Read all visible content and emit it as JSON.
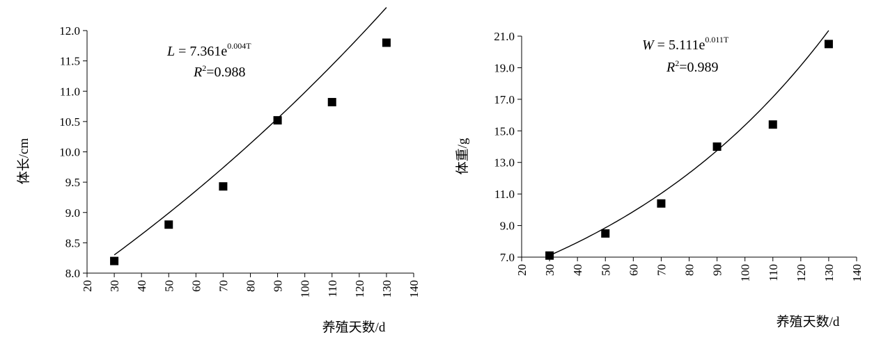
{
  "chart_data": [
    {
      "type": "scatter",
      "title": "",
      "xlabel": "养殖天数/d",
      "ylabel": "体长/cm",
      "xlim": [
        20,
        140
      ],
      "ylim": [
        8.0,
        12.0
      ],
      "x_ticks": [
        20,
        30,
        40,
        50,
        60,
        70,
        80,
        90,
        100,
        110,
        120,
        130,
        140
      ],
      "y_ticks": [
        8.0,
        8.5,
        9.0,
        9.5,
        10.0,
        10.5,
        11.0,
        11.5,
        12.0
      ],
      "x_tick_labels": [
        "20",
        "30",
        "40",
        "50",
        "60",
        "70",
        "80",
        "90",
        "100",
        "110",
        "120",
        "130",
        "140"
      ],
      "y_tick_labels": [
        "8.0",
        "8.5",
        "9.0",
        "9.5",
        "10.0",
        "10.5",
        "11.0",
        "11.5",
        "12.0"
      ],
      "grid": false,
      "legend": "none",
      "series": [
        {
          "x": [
            30,
            50,
            70,
            90,
            110,
            130
          ],
          "y": [
            8.2,
            8.8,
            9.43,
            10.52,
            10.82,
            11.8
          ]
        }
      ],
      "trendline": {
        "model": "exponential",
        "a": 7.361,
        "b": 0.004,
        "x_range": [
          30,
          130
        ]
      },
      "equation": {
        "lhs": "L",
        "eq_mid": " = 7.361e",
        "exponent": "0.004T",
        "r2_label": "R",
        "r2_sup": "2",
        "r2_value": "=0.988"
      }
    },
    {
      "type": "scatter",
      "title": "",
      "xlabel": "养殖天数/d",
      "ylabel": "体重/g",
      "xlim": [
        20,
        140
      ],
      "ylim": [
        7.0,
        21.0
      ],
      "x_ticks": [
        20,
        30,
        40,
        50,
        60,
        70,
        80,
        90,
        100,
        110,
        120,
        130,
        140
      ],
      "y_ticks": [
        7.0,
        9.0,
        11.0,
        13.0,
        15.0,
        17.0,
        19.0,
        21.0
      ],
      "x_tick_labels": [
        "20",
        "30",
        "40",
        "50",
        "60",
        "70",
        "80",
        "90",
        "100",
        "110",
        "120",
        "130",
        "140"
      ],
      "y_tick_labels": [
        "7.0",
        "9.0",
        "11.0",
        "13.0",
        "15.0",
        "17.0",
        "19.0",
        "21.0"
      ],
      "grid": false,
      "legend": "none",
      "series": [
        {
          "x": [
            30,
            50,
            70,
            90,
            110,
            130
          ],
          "y": [
            7.1,
            8.5,
            10.4,
            14.0,
            15.4,
            20.5
          ]
        }
      ],
      "trendline": {
        "model": "exponential",
        "a": 5.111,
        "b": 0.011,
        "x_range": [
          30,
          130
        ]
      },
      "equation": {
        "lhs": "W",
        "eq_mid": " = 5.111e",
        "exponent": "0.011T",
        "r2_label": "R",
        "r2_sup": "2",
        "r2_value": "=0.989"
      }
    }
  ]
}
